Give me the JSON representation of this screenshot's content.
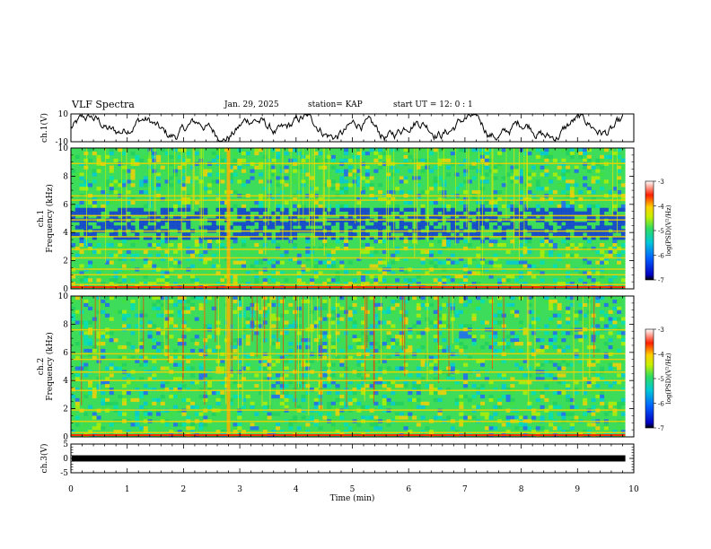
{
  "header": {
    "title": "VLF Spectra",
    "date": "Jan. 29, 2025",
    "station": "station= KAP",
    "start": "start  UT =  12: 0  : 1"
  },
  "chart_data": [
    {
      "type": "line",
      "panel": "ch1-waveform",
      "ylabel": "ch.1(V)",
      "ylim": [
        -10,
        10
      ],
      "yticks": [
        "10",
        "-10"
      ],
      "xlim": [
        0,
        10
      ],
      "color": "#000000"
    },
    {
      "type": "heatmap",
      "panel": "ch1-spectrogram",
      "ylabel": "ch.1\nFrequency (kHz)",
      "ylabel_lines": [
        "ch.1",
        "Frequency (kHz)"
      ],
      "ylim": [
        0,
        10
      ],
      "yticks": [
        "0",
        "2",
        "4",
        "6",
        "8",
        "10"
      ],
      "xlim": [
        0,
        10
      ],
      "colorbar": {
        "label": "log(PSD)(V²/Hz)",
        "range": [
          -7,
          -3
        ],
        "ticks": [
          "-3",
          "-4",
          "-5",
          "-6",
          "-7"
        ]
      },
      "bands": [
        0.3,
        1.0,
        1.4,
        2.2,
        2.8,
        3.7,
        4.1,
        4.9,
        5.2,
        6.3,
        6.6,
        8.9
      ]
    },
    {
      "type": "heatmap",
      "panel": "ch2-spectrogram",
      "ylabel": "ch.2\nFrequency (kHz)",
      "ylabel_lines": [
        "ch.2",
        "Frequency (kHz)"
      ],
      "ylim": [
        0,
        10
      ],
      "yticks": [
        "0",
        "2",
        "4",
        "6",
        "8",
        "10"
      ],
      "xlim": [
        0,
        10
      ],
      "colorbar": {
        "label": "log(PSD)(V²/Hz)",
        "range": [
          -7,
          -3
        ],
        "ticks": [
          "-3",
          "-4",
          "-5",
          "-6",
          "-7"
        ]
      },
      "bands": [
        0.3,
        1.1,
        1.9,
        3.3,
        4.0,
        4.6,
        5.5,
        5.9,
        7.6
      ]
    },
    {
      "type": "line",
      "panel": "ch3-signal",
      "ylabel": "ch.3(V)",
      "ylim": [
        -5,
        5
      ],
      "yticks": [
        "5",
        "0",
        "-5"
      ],
      "xlim": [
        0,
        10
      ],
      "xlabel": "Time (min)",
      "xticks": [
        "0",
        "1",
        "2",
        "3",
        "4",
        "5",
        "6",
        "7",
        "8",
        "9",
        "10"
      ]
    }
  ]
}
